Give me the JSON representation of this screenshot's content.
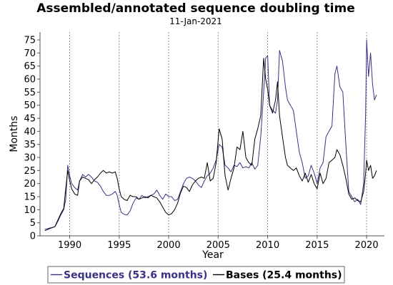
{
  "chart_data": {
    "type": "line",
    "title": "Assembled/annotated sequence doubling time",
    "subtitle": "11-Jan-2021",
    "xlabel": "Year",
    "ylabel": "Months",
    "xlim": [
      1987.0,
      2021.8
    ],
    "ylim": [
      0,
      78
    ],
    "x_ticks": [
      1990,
      1995,
      2000,
      2005,
      2010,
      2015,
      2020
    ],
    "y_ticks": [
      0,
      5,
      10,
      15,
      20,
      25,
      30,
      35,
      40,
      45,
      50,
      55,
      60,
      65,
      70,
      75
    ],
    "vertical_grid": true,
    "horizontal_grid": false,
    "legend_position": "bottom",
    "series": [
      {
        "name": "Sequences (53.6 months)",
        "color": "#3a3285",
        "points": [
          [
            1987.5,
            2.5
          ],
          [
            1988.0,
            3.0
          ],
          [
            1988.5,
            3.5
          ],
          [
            1988.8,
            5.5
          ],
          [
            1989.1,
            8.0
          ],
          [
            1989.4,
            10.0
          ],
          [
            1989.6,
            14.0
          ],
          [
            1989.8,
            27.0
          ],
          [
            1990.0,
            23.0
          ],
          [
            1990.2,
            20.0
          ],
          [
            1990.5,
            18.5
          ],
          [
            1990.8,
            17.5
          ],
          [
            1991.0,
            21.0
          ],
          [
            1991.3,
            23.5
          ],
          [
            1991.6,
            22.5
          ],
          [
            1991.9,
            23.5
          ],
          [
            1992.2,
            22.5
          ],
          [
            1992.5,
            21.0
          ],
          [
            1992.8,
            20.5
          ],
          [
            1993.1,
            19.0
          ],
          [
            1993.4,
            17.0
          ],
          [
            1993.7,
            15.5
          ],
          [
            1994.0,
            15.5
          ],
          [
            1994.3,
            16.0
          ],
          [
            1994.6,
            17.0
          ],
          [
            1994.8,
            15.5
          ],
          [
            1995.0,
            12.0
          ],
          [
            1995.2,
            9.0
          ],
          [
            1995.5,
            8.2
          ],
          [
            1995.8,
            8.0
          ],
          [
            1996.1,
            9.5
          ],
          [
            1996.4,
            12.5
          ],
          [
            1996.7,
            14.5
          ],
          [
            1997.0,
            14.0
          ],
          [
            1997.3,
            15.5
          ],
          [
            1997.6,
            14.5
          ],
          [
            1997.9,
            15.0
          ],
          [
            1998.2,
            15.5
          ],
          [
            1998.5,
            16.0
          ],
          [
            1998.8,
            17.5
          ],
          [
            1999.1,
            15.5
          ],
          [
            1999.4,
            14.0
          ],
          [
            1999.7,
            16.0
          ],
          [
            2000.0,
            15.0
          ],
          [
            2000.3,
            15.0
          ],
          [
            2000.6,
            13.5
          ],
          [
            2000.9,
            14.0
          ],
          [
            2001.2,
            17.0
          ],
          [
            2001.5,
            20.0
          ],
          [
            2001.8,
            22.0
          ],
          [
            2002.1,
            22.5
          ],
          [
            2002.4,
            22.0
          ],
          [
            2002.7,
            21.0
          ],
          [
            2003.0,
            19.5
          ],
          [
            2003.3,
            18.5
          ],
          [
            2003.6,
            21.0
          ],
          [
            2003.9,
            23.0
          ],
          [
            2004.2,
            24.0
          ],
          [
            2004.5,
            26.0
          ],
          [
            2004.8,
            29.0
          ],
          [
            2005.1,
            35.0
          ],
          [
            2005.4,
            34.0
          ],
          [
            2005.7,
            27.0
          ],
          [
            2006.0,
            26.0
          ],
          [
            2006.3,
            24.5
          ],
          [
            2006.6,
            27.0
          ],
          [
            2006.9,
            26.5
          ],
          [
            2007.2,
            28.0
          ],
          [
            2007.5,
            26.0
          ],
          [
            2007.8,
            26.5
          ],
          [
            2008.1,
            26.0
          ],
          [
            2008.4,
            28.0
          ],
          [
            2008.7,
            25.5
          ],
          [
            2009.0,
            27.0
          ],
          [
            2009.3,
            38.0
          ],
          [
            2009.6,
            55.0
          ],
          [
            2009.8,
            68.0
          ],
          [
            2010.0,
            69.0
          ],
          [
            2010.2,
            50.0
          ],
          [
            2010.5,
            48.0
          ],
          [
            2010.8,
            47.0
          ],
          [
            2011.0,
            52.0
          ],
          [
            2011.2,
            71.0
          ],
          [
            2011.5,
            67.0
          ],
          [
            2011.8,
            57.0
          ],
          [
            2012.0,
            52.0
          ],
          [
            2012.3,
            50.0
          ],
          [
            2012.6,
            48.0
          ],
          [
            2012.9,
            40.0
          ],
          [
            2013.2,
            32.0
          ],
          [
            2013.5,
            28.0
          ],
          [
            2013.8,
            22.0
          ],
          [
            2014.1,
            23.0
          ],
          [
            2014.4,
            27.0
          ],
          [
            2014.7,
            24.0
          ],
          [
            2015.0,
            20.0
          ],
          [
            2015.3,
            26.0
          ],
          [
            2015.6,
            28.0
          ],
          [
            2015.9,
            38.0
          ],
          [
            2016.2,
            40.0
          ],
          [
            2016.5,
            42.0
          ],
          [
            2016.8,
            62.0
          ],
          [
            2017.0,
            65.0
          ],
          [
            2017.3,
            57.0
          ],
          [
            2017.6,
            55.0
          ],
          [
            2017.9,
            35.0
          ],
          [
            2018.2,
            17.0
          ],
          [
            2018.5,
            15.0
          ],
          [
            2018.8,
            13.0
          ],
          [
            2019.1,
            14.0
          ],
          [
            2019.4,
            12.0
          ],
          [
            2019.7,
            20.0
          ],
          [
            2019.9,
            47.0
          ],
          [
            2020.0,
            75.0
          ],
          [
            2020.2,
            61.0
          ],
          [
            2020.4,
            70.0
          ],
          [
            2020.6,
            58.0
          ],
          [
            2020.8,
            52.0
          ],
          [
            2021.0,
            54.0
          ]
        ]
      },
      {
        "name": "Bases (25.4 months)",
        "color": "#000000",
        "points": [
          [
            1987.5,
            2.0
          ],
          [
            1988.0,
            2.8
          ],
          [
            1988.5,
            3.5
          ],
          [
            1988.8,
            6.0
          ],
          [
            1989.1,
            8.5
          ],
          [
            1989.4,
            10.5
          ],
          [
            1989.6,
            18.0
          ],
          [
            1989.8,
            25.0
          ],
          [
            1990.0,
            21.0
          ],
          [
            1990.2,
            18.0
          ],
          [
            1990.5,
            16.0
          ],
          [
            1990.8,
            15.5
          ],
          [
            1991.0,
            21.0
          ],
          [
            1991.3,
            22.5
          ],
          [
            1991.6,
            22.0
          ],
          [
            1991.9,
            21.5
          ],
          [
            1992.2,
            20.0
          ],
          [
            1992.5,
            21.5
          ],
          [
            1992.8,
            22.5
          ],
          [
            1993.1,
            24.0
          ],
          [
            1993.4,
            25.0
          ],
          [
            1993.7,
            24.0
          ],
          [
            1994.0,
            24.5
          ],
          [
            1994.3,
            24.0
          ],
          [
            1994.6,
            24.5
          ],
          [
            1994.8,
            22.0
          ],
          [
            1995.0,
            18.0
          ],
          [
            1995.2,
            15.0
          ],
          [
            1995.5,
            14.0
          ],
          [
            1995.8,
            13.5
          ],
          [
            1996.1,
            15.5
          ],
          [
            1996.4,
            15.0
          ],
          [
            1996.7,
            15.0
          ],
          [
            1997.0,
            14.0
          ],
          [
            1997.3,
            14.5
          ],
          [
            1997.6,
            15.0
          ],
          [
            1997.9,
            14.5
          ],
          [
            1998.2,
            15.5
          ],
          [
            1998.5,
            15.0
          ],
          [
            1998.8,
            14.5
          ],
          [
            1999.1,
            13.0
          ],
          [
            1999.4,
            11.0
          ],
          [
            1999.7,
            9.0
          ],
          [
            2000.0,
            8.0
          ],
          [
            2000.3,
            8.5
          ],
          [
            2000.6,
            10.0
          ],
          [
            2000.9,
            12.5
          ],
          [
            2001.2,
            16.5
          ],
          [
            2001.5,
            19.0
          ],
          [
            2001.8,
            18.5
          ],
          [
            2002.1,
            17.0
          ],
          [
            2002.4,
            19.5
          ],
          [
            2002.7,
            21.0
          ],
          [
            2003.0,
            22.0
          ],
          [
            2003.3,
            22.5
          ],
          [
            2003.6,
            22.0
          ],
          [
            2003.9,
            28.0
          ],
          [
            2004.2,
            21.0
          ],
          [
            2004.5,
            22.0
          ],
          [
            2004.8,
            28.0
          ],
          [
            2005.1,
            41.0
          ],
          [
            2005.4,
            37.0
          ],
          [
            2005.7,
            23.0
          ],
          [
            2006.0,
            17.5
          ],
          [
            2006.3,
            22.0
          ],
          [
            2006.6,
            26.0
          ],
          [
            2006.9,
            34.0
          ],
          [
            2007.2,
            33.0
          ],
          [
            2007.5,
            40.0
          ],
          [
            2007.8,
            30.0
          ],
          [
            2008.1,
            28.0
          ],
          [
            2008.4,
            27.0
          ],
          [
            2008.7,
            37.0
          ],
          [
            2009.0,
            41.0
          ],
          [
            2009.3,
            46.0
          ],
          [
            2009.6,
            68.0
          ],
          [
            2009.8,
            60.0
          ],
          [
            2010.0,
            56.0
          ],
          [
            2010.2,
            50.0
          ],
          [
            2010.5,
            47.0
          ],
          [
            2010.8,
            52.0
          ],
          [
            2011.0,
            59.0
          ],
          [
            2011.2,
            46.0
          ],
          [
            2011.5,
            38.0
          ],
          [
            2011.8,
            30.0
          ],
          [
            2012.0,
            27.0
          ],
          [
            2012.3,
            26.0
          ],
          [
            2012.6,
            25.0
          ],
          [
            2012.9,
            26.0
          ],
          [
            2013.2,
            23.0
          ],
          [
            2013.5,
            21.0
          ],
          [
            2013.8,
            24.0
          ],
          [
            2014.1,
            20.5
          ],
          [
            2014.4,
            23.5
          ],
          [
            2014.7,
            20.0
          ],
          [
            2015.0,
            18.0
          ],
          [
            2015.3,
            24.0
          ],
          [
            2015.6,
            20.0
          ],
          [
            2015.9,
            22.0
          ],
          [
            2016.2,
            28.0
          ],
          [
            2016.5,
            29.0
          ],
          [
            2016.8,
            30.0
          ],
          [
            2017.0,
            33.0
          ],
          [
            2017.3,
            31.0
          ],
          [
            2017.6,
            27.0
          ],
          [
            2017.9,
            22.0
          ],
          [
            2018.2,
            16.0
          ],
          [
            2018.5,
            14.0
          ],
          [
            2018.8,
            14.5
          ],
          [
            2019.1,
            13.5
          ],
          [
            2019.4,
            13.0
          ],
          [
            2019.7,
            17.0
          ],
          [
            2019.9,
            24.0
          ],
          [
            2020.0,
            29.0
          ],
          [
            2020.2,
            25.0
          ],
          [
            2020.4,
            27.0
          ],
          [
            2020.6,
            22.0
          ],
          [
            2020.8,
            23.0
          ],
          [
            2021.0,
            25.0
          ]
        ]
      }
    ]
  }
}
